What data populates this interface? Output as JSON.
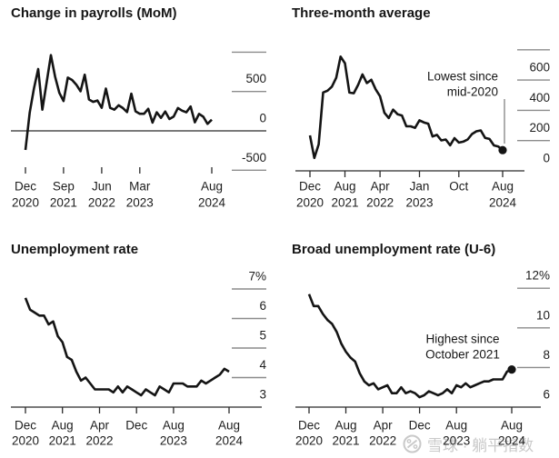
{
  "watermark": {
    "text": "雪球 · 躺平指数"
  },
  "colors": {
    "background": "#ffffff",
    "line": "#141414",
    "axis": "#2a2a2a",
    "minor_tick": "#8c8c8c",
    "watermark": "#c9c9c9"
  },
  "chart_data": [
    {
      "type": "line",
      "title": "Change in payrolls (MoM)",
      "x_axis": {
        "start": "Dec 2020",
        "end": "Aug 2024",
        "frequency": "monthly",
        "ticks": [
          {
            "month_index": 0,
            "line1": "Dec",
            "line2": "2020"
          },
          {
            "month_index": 9,
            "line1": "Sep",
            "line2": "2021"
          },
          {
            "month_index": 18,
            "line1": "Jun",
            "line2": "2022"
          },
          {
            "month_index": 27,
            "line1": "Mar",
            "line2": "2023"
          },
          {
            "month_index": 44,
            "line1": "Aug",
            "line2": "2024"
          }
        ]
      },
      "y_axis": {
        "range": [
          -750,
          1000
        ],
        "ticks": [
          {
            "value": 500,
            "label": "500"
          },
          {
            "value": 0,
            "label": "0"
          },
          {
            "value": -500,
            "label": "-500"
          }
        ],
        "dash_values": [
          1000,
          500,
          -500
        ],
        "zero_line": true
      },
      "series": {
        "name": "payrolls-mom-line",
        "end_dot": false,
        "values": [
          -243,
          233,
          536,
          785,
          269,
          614,
          962,
          689,
          483,
          379,
          677,
          647,
          588,
          504,
          714,
          398,
          368,
          386,
          293,
          537,
          292,
          269,
          324,
          290,
          239,
          472,
          248,
          217,
          217,
          281,
          105,
          236,
          165,
          246,
          150,
          182,
          290,
          256,
          236,
          310,
          108,
          216,
          179,
          89,
          142
        ]
      }
    },
    {
      "type": "line",
      "title": "Three-month average",
      "annotation": {
        "line1": "Lowest since",
        "line2": "mid-2020"
      },
      "x_axis": {
        "start": "Dec 2020",
        "end": "Aug 2024",
        "frequency": "monthly",
        "ticks": [
          {
            "month_index": 0,
            "line1": "Dec",
            "line2": "2020"
          },
          {
            "month_index": 8,
            "line1": "Aug",
            "line2": "2021"
          },
          {
            "month_index": 16,
            "line1": "Apr",
            "line2": "2022"
          },
          {
            "month_index": 25,
            "line1": "Jan",
            "line2": "2023"
          },
          {
            "month_index": 34,
            "line1": "Oct",
            "line2": ""
          },
          {
            "month_index": 44,
            "line1": "Aug",
            "line2": "2024"
          }
        ]
      },
      "y_axis": {
        "range": [
          0,
          800
        ],
        "ticks": [
          {
            "value": 600,
            "label": "600"
          },
          {
            "value": 400,
            "label": "400"
          },
          {
            "value": 200,
            "label": "200"
          },
          {
            "value": 0,
            "label": "0"
          }
        ],
        "dash_values": [
          800,
          600,
          400,
          200
        ],
        "zero_line": false
      },
      "series": {
        "name": "three-month-average-line",
        "end_dot": true,
        "values": [
          234,
          85,
          175,
          518,
          530,
          556,
          615,
          755,
          711,
          517,
          513,
          568,
          637,
          580,
          602,
          539,
          493,
          384,
          349,
          405,
          374,
          366,
          295,
          294,
          284,
          334,
          320,
          312,
          227,
          238,
          201,
          207,
          169,
          216,
          187,
          193,
          207,
          243,
          261,
          267,
          218,
          211,
          168,
          161,
          137
        ]
      }
    },
    {
      "type": "line",
      "title": "Unemployment rate",
      "x_axis": {
        "start": "Dec 2020",
        "end": "Aug 2024",
        "frequency": "monthly",
        "ticks": [
          {
            "month_index": 0,
            "line1": "Dec",
            "line2": "2020"
          },
          {
            "month_index": 8,
            "line1": "Aug",
            "line2": "2021"
          },
          {
            "month_index": 16,
            "line1": "Apr",
            "line2": "2022"
          },
          {
            "month_index": 24,
            "line1": "Dec",
            "line2": ""
          },
          {
            "month_index": 32,
            "line1": "Aug",
            "line2": "2023"
          },
          {
            "month_index": 44,
            "line1": "Aug",
            "line2": "2024"
          }
        ]
      },
      "y_axis": {
        "range": [
          3,
          7
        ],
        "ticks": [
          {
            "value": 7,
            "label": "7%"
          },
          {
            "value": 6,
            "label": "6"
          },
          {
            "value": 5,
            "label": "5"
          },
          {
            "value": 4,
            "label": "4"
          },
          {
            "value": 3,
            "label": "3"
          }
        ],
        "dash_values": [
          7,
          6,
          5,
          4
        ],
        "zero_line": false
      },
      "series": {
        "name": "unemployment-rate-line",
        "end_dot": false,
        "values": [
          6.7,
          6.3,
          6.2,
          6.1,
          6.1,
          5.8,
          5.9,
          5.4,
          5.2,
          4.7,
          4.6,
          4.2,
          3.9,
          4.0,
          3.8,
          3.6,
          3.6,
          3.6,
          3.6,
          3.5,
          3.7,
          3.5,
          3.7,
          3.6,
          3.5,
          3.4,
          3.6,
          3.5,
          3.4,
          3.7,
          3.6,
          3.5,
          3.8,
          3.8,
          3.8,
          3.7,
          3.7,
          3.7,
          3.9,
          3.8,
          3.9,
          4.0,
          4.1,
          4.3,
          4.2
        ]
      }
    },
    {
      "type": "line",
      "title": "Broad unemployment rate (U-6)",
      "annotation": {
        "line1": "Highest since",
        "line2": "October 2021"
      },
      "x_axis": {
        "start": "Dec 2020",
        "end": "Aug 2024",
        "frequency": "monthly",
        "ticks": [
          {
            "month_index": 0,
            "line1": "Dec",
            "line2": "2020"
          },
          {
            "month_index": 8,
            "line1": "Aug",
            "line2": "2021"
          },
          {
            "month_index": 16,
            "line1": "Apr",
            "line2": "2022"
          },
          {
            "month_index": 24,
            "line1": "Dec",
            "line2": ""
          },
          {
            "month_index": 32,
            "line1": "Aug",
            "line2": "2023"
          },
          {
            "month_index": 44,
            "line1": "Aug",
            "line2": "2024"
          }
        ]
      },
      "y_axis": {
        "range": [
          6,
          12
        ],
        "ticks": [
          {
            "value": 12,
            "label": "12%"
          },
          {
            "value": 10,
            "label": "10"
          },
          {
            "value": 8,
            "label": "8"
          },
          {
            "value": 6,
            "label": "6"
          }
        ],
        "dash_values": [
          12,
          10,
          8
        ],
        "zero_line": false
      },
      "series": {
        "name": "broad-unemployment-rate-line",
        "end_dot": true,
        "values": [
          11.7,
          11.1,
          11.1,
          10.7,
          10.4,
          10.2,
          9.8,
          9.2,
          8.8,
          8.5,
          8.3,
          7.7,
          7.3,
          7.1,
          7.2,
          6.9,
          7.0,
          7.1,
          6.7,
          6.7,
          7.0,
          6.7,
          6.8,
          6.7,
          6.5,
          6.6,
          6.8,
          6.7,
          6.6,
          6.7,
          6.9,
          6.7,
          7.1,
          7.0,
          7.2,
          7.0,
          7.1,
          7.2,
          7.3,
          7.3,
          7.4,
          7.4,
          7.4,
          7.8,
          7.9
        ]
      }
    }
  ]
}
